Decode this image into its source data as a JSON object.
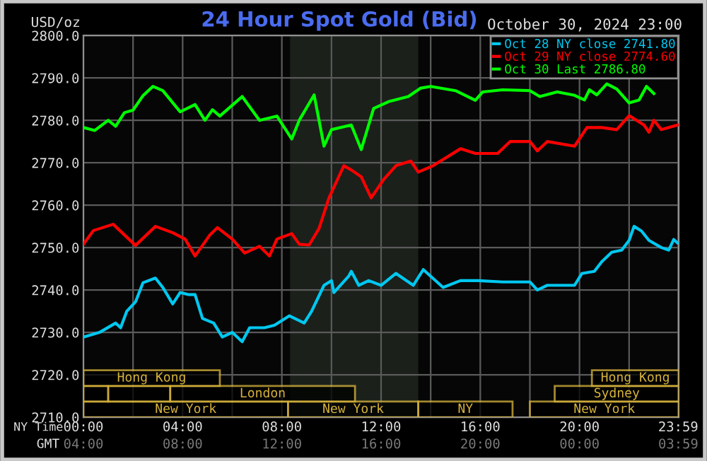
{
  "chart_data": {
    "type": "line",
    "title": "24 Hour Spot Gold (Bid)",
    "subtitle": "October 30, 2024 23:00",
    "ylabel": "USD/oz",
    "xlabel": "NY Time",
    "x2label": "GMT",
    "xlim": [
      0,
      24
    ],
    "xticks": [
      {
        "value": 0,
        "label": "00:00"
      },
      {
        "value": 2,
        "label": null
      },
      {
        "value": 4,
        "label": "04:00"
      },
      {
        "value": 6,
        "label": null
      },
      {
        "value": 8,
        "label": "08:00"
      },
      {
        "value": 10,
        "label": null
      },
      {
        "value": 12,
        "label": "12:00"
      },
      {
        "value": 14,
        "label": null
      },
      {
        "value": 16,
        "label": "16:00"
      },
      {
        "value": 18,
        "label": null
      },
      {
        "value": 20,
        "label": "20:00"
      },
      {
        "value": 22,
        "label": null
      },
      {
        "value": 23.98,
        "label": "23:59"
      }
    ],
    "x2lim": [
      "2024-10-30T04:00",
      "2024-10-31T04:00"
    ],
    "x2ticks": [
      {
        "value": "2024-10-30T04:00",
        "label": "04:00"
      },
      {
        "value": "2024-10-30T08:00",
        "label": "08:00"
      },
      {
        "value": "2024-10-30T12:00",
        "label": "12:00"
      },
      {
        "value": "2024-10-30T16:00",
        "label": "16:00"
      },
      {
        "value": "2024-10-30T20:00",
        "label": "20:00"
      },
      {
        "value": "2024-10-31T00:00",
        "label": "00:00"
      },
      {
        "value": "2024-10-31T03:59",
        "label": "03:59"
      }
    ],
    "ylim": [
      2710,
      2800
    ],
    "yticks": [
      {
        "value": 2710,
        "label": "2710.0"
      },
      {
        "value": 2720,
        "label": "2720.0"
      },
      {
        "value": 2730,
        "label": "2730.0"
      },
      {
        "value": 2740,
        "label": "2740.0"
      },
      {
        "value": 2750,
        "label": "2750.0"
      },
      {
        "value": 2760,
        "label": "2760.0"
      },
      {
        "value": 2770,
        "label": "2770.0"
      },
      {
        "value": 2780,
        "label": "2780.0"
      },
      {
        "value": 2790,
        "label": "2790.0"
      },
      {
        "value": 2800,
        "label": "2800.0"
      }
    ],
    "grid": true,
    "legend": "top right",
    "marker": "none",
    "line_style": "solid",
    "series": [
      {
        "name": "Oct 28 NY close 2741.80",
        "color": "#00c8f0",
        "x": [
          0,
          0.65,
          1.3,
          1.5,
          1.75,
          2.1,
          2.4,
          2.9,
          3.2,
          3.6,
          3.9,
          4.25,
          4.5,
          4.8,
          5.25,
          5.6,
          6.0,
          6.4,
          6.7,
          7.3,
          7.7,
          8.3,
          8.9,
          9.2,
          9.7,
          10.0,
          10.1,
          10.7,
          10.8,
          11.1,
          11.5,
          12.0,
          12.6,
          13.3,
          13.7,
          14.5,
          15.2,
          15.9,
          16.9,
          18.0,
          18.3,
          18.7,
          19.8,
          20.1,
          20.6,
          20.9,
          21.3,
          21.7,
          22.0,
          22.2,
          22.5,
          22.8,
          23.3,
          23.6,
          23.8,
          23.95
        ],
        "values": [
          2728.9,
          2730,
          2732.2,
          2731.1,
          2735,
          2737.2,
          2741.7,
          2742.8,
          2740.6,
          2736.7,
          2739.4,
          2738.9,
          2738.9,
          2733.3,
          2732.2,
          2728.9,
          2730,
          2727.8,
          2731.1,
          2731.1,
          2731.7,
          2733.9,
          2732.2,
          2735,
          2741.1,
          2742.2,
          2739.4,
          2743.3,
          2744.4,
          2741.1,
          2742.2,
          2741.1,
          2743.9,
          2741.1,
          2744.8,
          2740.6,
          2742.2,
          2742.2,
          2741.9,
          2741.9,
          2740,
          2741.1,
          2741.1,
          2743.9,
          2744.4,
          2746.7,
          2748.9,
          2749.4,
          2751.7,
          2755,
          2753.9,
          2751.7,
          2750,
          2749.4,
          2751.9,
          2751.1
        ]
      },
      {
        "name": "Oct 29 NY close 2774.60",
        "color": "#ff0000",
        "x": [
          0,
          0.4,
          1.2,
          2.1,
          2.9,
          3.6,
          4.1,
          4.5,
          5.1,
          5.4,
          6.0,
          6.5,
          7.1,
          7.5,
          7.8,
          8.4,
          8.7,
          9.1,
          9.5,
          9.9,
          10.5,
          10.8,
          11.2,
          11.6,
          12.1,
          12.6,
          13.2,
          13.5,
          14.1,
          15.2,
          15.8,
          16.7,
          17.2,
          18.0,
          18.3,
          18.7,
          19.8,
          20.3,
          20.9,
          21.5,
          22.0,
          22.6,
          22.8,
          23.0,
          23.3,
          23.95
        ],
        "values": [
          2750.8,
          2754,
          2755.5,
          2750.5,
          2755,
          2753.5,
          2752,
          2748,
          2753,
          2754.7,
          2752,
          2748.7,
          2750.3,
          2748,
          2752,
          2753.3,
          2750.8,
          2750.6,
          2754.5,
          2761.7,
          2769.3,
          2768.3,
          2766.7,
          2761.7,
          2766,
          2769.3,
          2770.4,
          2767.8,
          2769.3,
          2773.3,
          2772.2,
          2772.2,
          2775,
          2775,
          2772.8,
          2775,
          2773.9,
          2778.3,
          2778.3,
          2777.8,
          2781.1,
          2778.9,
          2777.2,
          2780,
          2777.8,
          2778.9
        ]
      },
      {
        "name": "Oct 30 Last 2786.80",
        "color": "#00ff00",
        "x": [
          0,
          0.45,
          1.0,
          1.3,
          1.65,
          2.0,
          2.4,
          2.8,
          3.2,
          3.9,
          4.5,
          4.9,
          5.2,
          5.5,
          6.4,
          7.1,
          7.8,
          8.4,
          8.7,
          9.3,
          9.7,
          10.0,
          10.8,
          11.2,
          11.7,
          12.3,
          13.1,
          13.6,
          14.0,
          15.0,
          15.8,
          16.1,
          16.9,
          18.0,
          18.4,
          19.1,
          19.8,
          20.2,
          20.4,
          20.7,
          21.1,
          21.5,
          22.0,
          22.4,
          22.7,
          23.0
        ],
        "values": [
          2778.3,
          2777.6,
          2780,
          2778.6,
          2781.8,
          2782.4,
          2785.8,
          2788,
          2787,
          2782,
          2783.7,
          2780,
          2782.5,
          2781,
          2785.6,
          2780,
          2781,
          2775.6,
          2780,
          2786,
          2773.9,
          2777.8,
          2778.9,
          2773.1,
          2782.8,
          2784.4,
          2785.6,
          2787.6,
          2788,
          2787,
          2784.7,
          2786.7,
          2787.2,
          2787,
          2785.6,
          2786.7,
          2785.9,
          2784.8,
          2787.2,
          2786,
          2788.6,
          2787.4,
          2784.1,
          2784.8,
          2788,
          2786.3
        ]
      }
    ],
    "bands": [
      {
        "axis": "x",
        "from": 8.33,
        "to": 13.5,
        "color": "#1b201b"
      },
      {
        "axis": "x",
        "from": 0,
        "to": 8.25,
        "label": "New York",
        "color": "#d8b43c"
      },
      {
        "axis": "x",
        "from": 8.25,
        "to": 13.5,
        "label": "New York",
        "color": "#d8b43c"
      },
      {
        "axis": "x",
        "from": 13.5,
        "to": 17.3,
        "label": "NY",
        "color": "#d8b43c"
      },
      {
        "axis": "x",
        "from": 18.0,
        "to": 24,
        "label": "New York",
        "color": "#d8b43c"
      },
      {
        "axis": "x",
        "from": 0,
        "to": 1.0,
        "label": null,
        "color": "#d8b43c"
      },
      {
        "axis": "x",
        "from": 1.0,
        "to": 3.5,
        "label": null,
        "color": "#d8b43c"
      },
      {
        "axis": "x",
        "from": 3.5,
        "to": 10.95,
        "label": "London",
        "color": "#d8b43c"
      },
      {
        "axis": "x",
        "from": 19.0,
        "to": 24,
        "label": "Sydney",
        "color": "#d8b43c"
      },
      {
        "axis": "x",
        "from": 0,
        "to": 5.5,
        "label": "Hong Kong",
        "color": "#d8b43c"
      },
      {
        "axis": "x",
        "from": 20.5,
        "to": 24,
        "label": "Hong Kong",
        "color": "#d8b43c"
      }
    ]
  }
}
